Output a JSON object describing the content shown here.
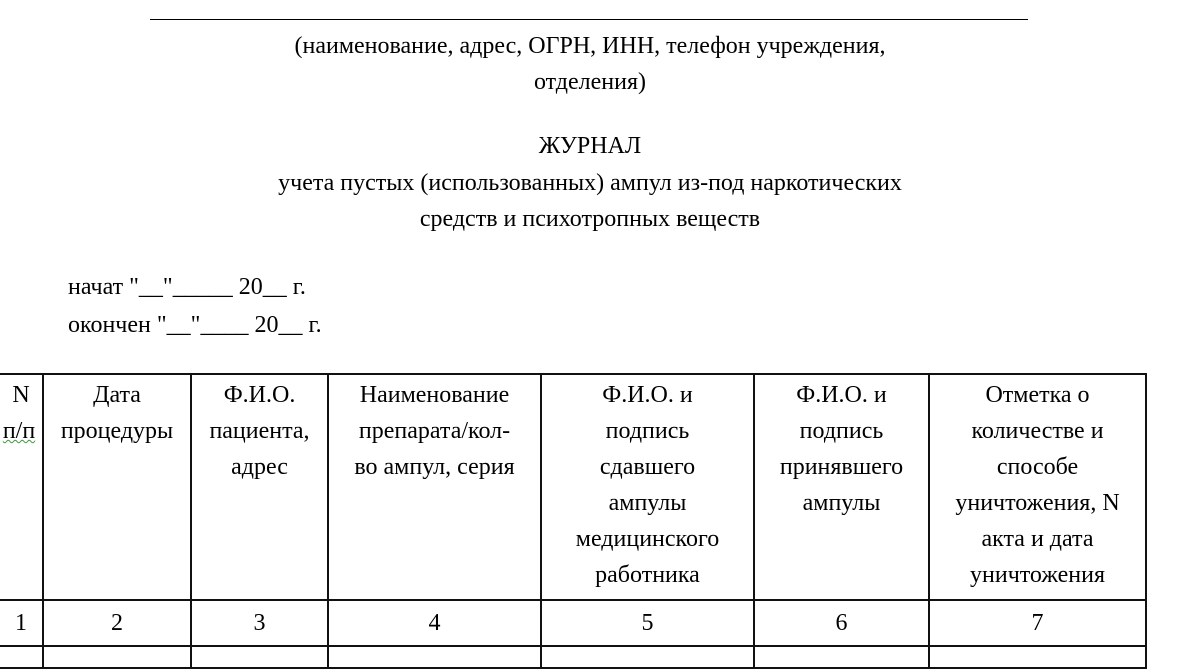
{
  "header": {
    "org_caption_line1": "(наименование, адрес, ОГРН, ИНН, телефон учреждения,",
    "org_caption_line2": "отделения)",
    "title": "ЖУРНАЛ",
    "subtitle_line1": "учета пустых (использованных) ампул из-под наркотических",
    "subtitle_line2": "средств и психотропных веществ",
    "started": "начат \"__\"_____ 20__ г.",
    "finished": "окончен \"__\"____ 20__ г."
  },
  "table": {
    "columns": [
      {
        "l1": "N",
        "l2": "п/п"
      },
      {
        "l1": "Дата",
        "l2": "процедуры"
      },
      {
        "l1": "Ф.И.О.",
        "l2": "пациента,",
        "l3": "адрес"
      },
      {
        "l1": "Наименование",
        "l2": "препарата/кол-",
        "l3": "во ампул, серия"
      },
      {
        "l1": "Ф.И.О. и",
        "l2": "подпись",
        "l3": "сдавшего",
        "l4": "ампулы",
        "l5": "медицинского",
        "l6": "работника"
      },
      {
        "l1": "Ф.И.О. и",
        "l2": "подпись",
        "l3": "принявшего",
        "l4": "ампулы"
      },
      {
        "l1": "Отметка о",
        "l2": "количестве и",
        "l3": "способе",
        "l4": "уничтожения, N",
        "l5": "акта и дата",
        "l6": "уничтожения"
      }
    ],
    "numbers": [
      "1",
      "2",
      "3",
      "4",
      "5",
      "6",
      "7"
    ]
  }
}
